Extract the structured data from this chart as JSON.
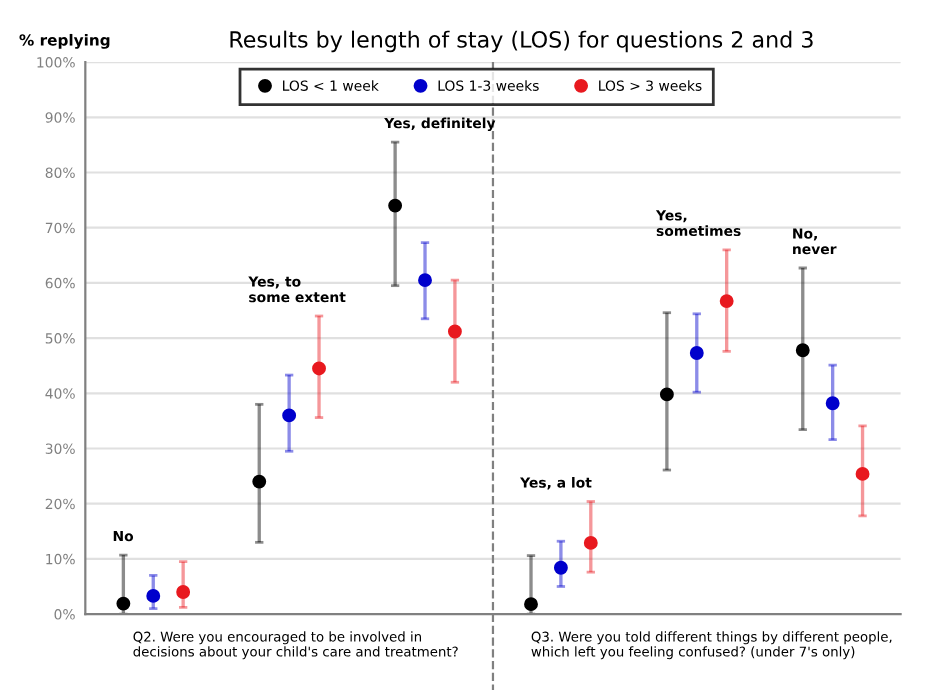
{
  "chart_data": {
    "type": "scatter",
    "title": "Results by length of stay (LOS) for questions 2 and 3",
    "ylabel": "% replying",
    "categories": [
      null,
      null,
      null,
      null,
      null,
      null
    ],
    "series": [
      {
        "name": "LOS < 1 week",
        "color": "#000000",
        "values": [
          1.9,
          24,
          74,
          1.8,
          39.8,
          47.8
        ],
        "errors": [
          [
            0,
            10.7
          ],
          [
            13,
            38
          ],
          [
            59.5,
            85.5
          ],
          [
            0,
            10.6
          ],
          [
            26.1,
            54.6
          ],
          [
            33.4,
            62.7
          ]
        ]
      },
      {
        "name": "LOS 1-3 weeks",
        "color": "#0000cc",
        "values": [
          3.3,
          36,
          60.5,
          8.4,
          47.3,
          38.2
        ],
        "errors": [
          [
            1,
            7
          ],
          [
            29.5,
            43.3
          ],
          [
            53.5,
            67.3
          ],
          [
            5,
            13.2
          ],
          [
            40.2,
            54.4
          ],
          [
            31.6,
            45.1
          ]
        ]
      },
      {
        "name": "LOS > 3 weeks",
        "color": "#e8191f",
        "values": [
          4,
          44.5,
          51.2,
          12.9,
          56.7,
          25.4
        ],
        "errors": [
          [
            1.2,
            9.5
          ],
          [
            35.6,
            54
          ],
          [
            42,
            60.5
          ],
          [
            7.6,
            20.4
          ],
          [
            47.6,
            66
          ],
          [
            17.8,
            34.1
          ]
        ]
      }
    ],
    "ylim": [
      0,
      100
    ],
    "yticks": [
      {
        "value": 0,
        "label": "0%"
      },
      {
        "value": 10,
        "label": "10%"
      },
      {
        "value": 20,
        "label": "20%"
      },
      {
        "value": 30,
        "label": "30%"
      },
      {
        "value": 40,
        "label": "40%"
      },
      {
        "value": 50,
        "label": "50%"
      },
      {
        "value": 60,
        "label": "60%"
      },
      {
        "value": 70,
        "label": "70%"
      },
      {
        "value": 80,
        "label": "80%"
      },
      {
        "value": 90,
        "label": "90%"
      },
      {
        "value": 100,
        "label": "100%"
      }
    ],
    "annotations": [
      "No",
      "Yes, to\nsome extent",
      "Yes, definitely",
      "Yes, a lot",
      "Yes,\nsometimes",
      "No,\nnever",
      "Q2. Were you encouraged to be involved in\ndecisions about your child's care and treatment?",
      "Q3. Were you told different things by different people,\nwhich left you feeling confused? (under 7's only)"
    ],
    "grid": "y",
    "legend": "top",
    "marker": "circle",
    "tick_labels": "y"
  }
}
